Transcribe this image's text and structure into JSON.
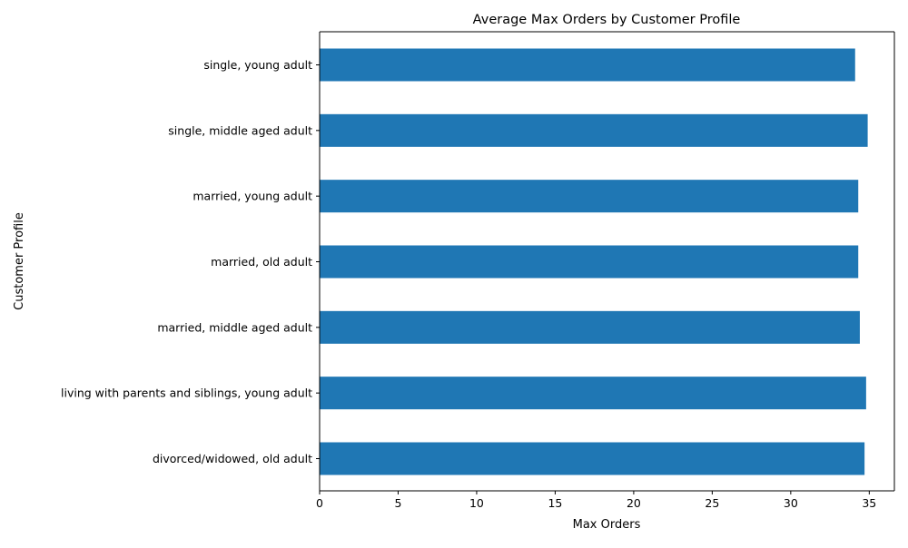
{
  "chart_data": {
    "type": "bar",
    "orientation": "horizontal",
    "title": "Average Max Orders by Customer Profile",
    "xlabel": "Max Orders",
    "ylabel": "Customer Profile",
    "categories": [
      "divorced/widowed, old adult",
      "living with parents and siblings, young adult",
      "married, middle aged adult",
      "married, old adult",
      "married, young adult",
      "single, middle aged adult",
      "single, young adult"
    ],
    "values": [
      34.7,
      34.8,
      34.4,
      34.3,
      34.3,
      34.9,
      34.1
    ],
    "xlim": [
      0,
      36.6
    ],
    "xticks": [
      "0",
      "5",
      "10",
      "15",
      "20",
      "25",
      "30",
      "35"
    ],
    "bar_color": "#1f77b4",
    "grid": false,
    "legend": "none"
  }
}
